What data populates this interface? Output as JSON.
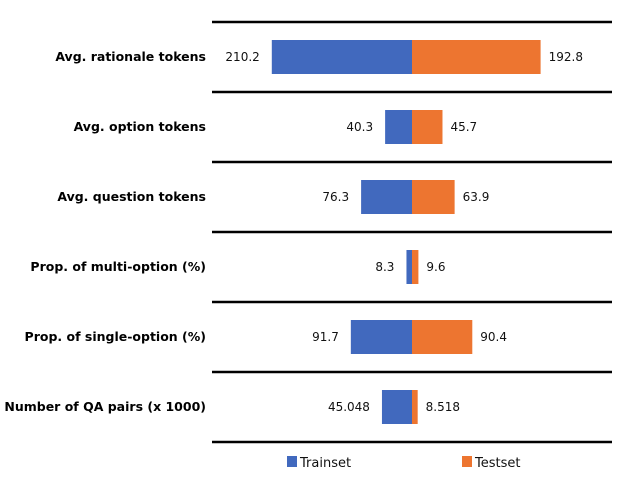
{
  "chart_data": {
    "type": "bar",
    "orientation": "horizontal-butterfly",
    "title": "",
    "categories": [
      "Avg. rationale tokens",
      "Avg. option tokens",
      "Avg. question tokens",
      "Prop. of multi-option (%)",
      "Prop. of single-option (%)",
      "Number of QA pairs (x 1000)"
    ],
    "series": [
      {
        "name": "Trainset",
        "color": "#4169BE",
        "values": [
          210.2,
          40.3,
          76.3,
          8.3,
          91.7,
          45.048
        ],
        "labels": [
          "210.2",
          "40.3",
          "76.3",
          "8.3",
          "91.7",
          "45.048"
        ]
      },
      {
        "name": "Testset",
        "color": "#ED7530",
        "values": [
          192.8,
          45.7,
          63.9,
          9.6,
          90.4,
          8.518
        ],
        "labels": [
          "192.8",
          "45.7",
          "63.9",
          "9.6",
          "90.4",
          "8.518"
        ]
      }
    ],
    "legend": "bottom",
    "grid": false
  }
}
